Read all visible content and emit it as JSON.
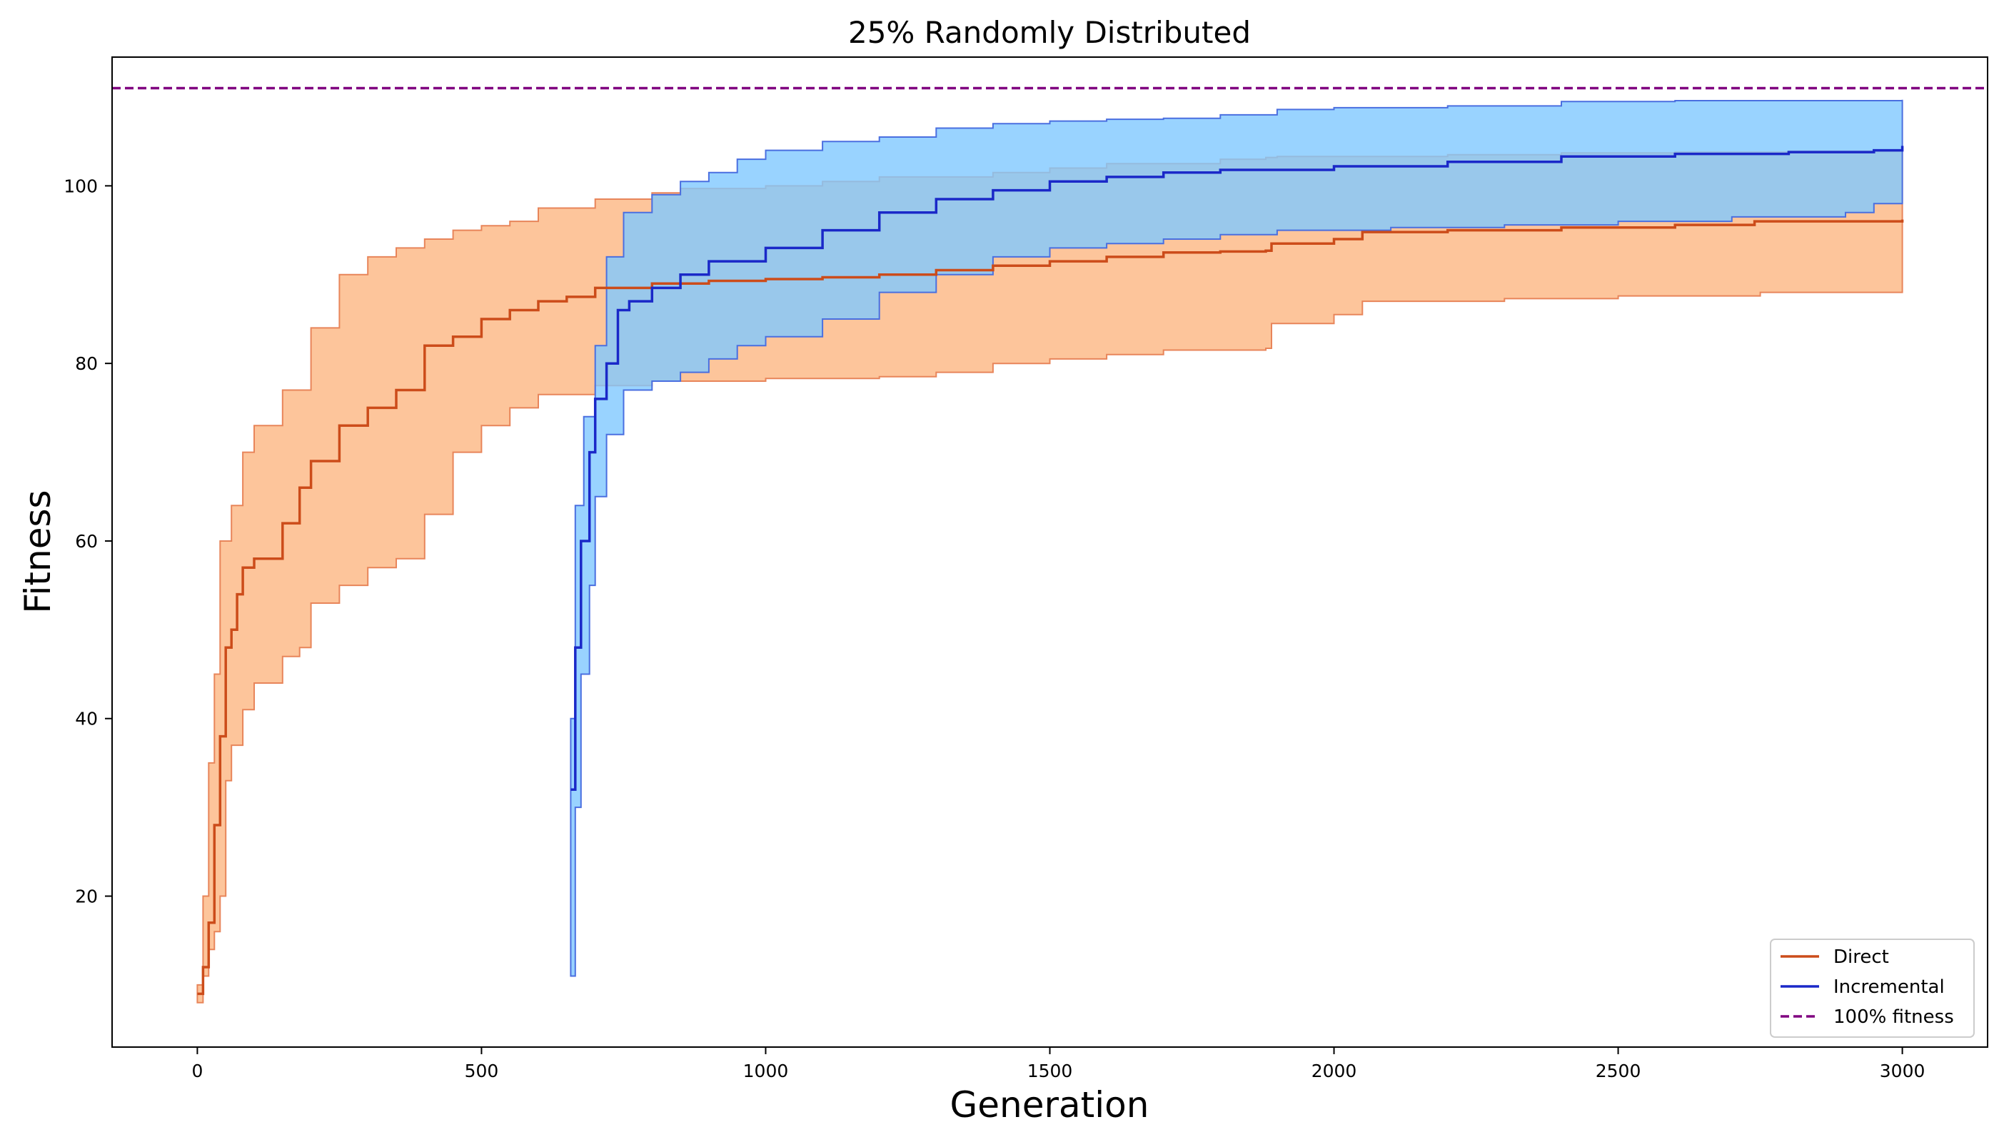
{
  "chart_data": {
    "type": "line",
    "title": "25% Randomly Distributed",
    "xlabel": "Generation",
    "ylabel": "Fitness",
    "xlim": [
      -150,
      3150
    ],
    "ylim": [
      3,
      114.5
    ],
    "xticks": [
      0,
      500,
      1000,
      1500,
      2000,
      2500,
      3000
    ],
    "yticks": [
      20,
      40,
      60,
      80,
      100
    ],
    "grid": false,
    "legend_position": "lower-right",
    "reference_line": {
      "name": "100% fitness",
      "y": 111,
      "color": "#800080",
      "style": "dashed"
    },
    "series": [
      {
        "name": "Direct",
        "color": "#CC4C1A",
        "band_color": "#FDBB8A",
        "band_edge_color": "#E8855A",
        "mean": [
          [
            0,
            9
          ],
          [
            10,
            12
          ],
          [
            20,
            17
          ],
          [
            30,
            28
          ],
          [
            40,
            38
          ],
          [
            50,
            48
          ],
          [
            60,
            50
          ],
          [
            70,
            54
          ],
          [
            80,
            57
          ],
          [
            100,
            58
          ],
          [
            150,
            62
          ],
          [
            180,
            66
          ],
          [
            200,
            69
          ],
          [
            250,
            73
          ],
          [
            300,
            75
          ],
          [
            350,
            77
          ],
          [
            400,
            82
          ],
          [
            450,
            83
          ],
          [
            500,
            85
          ],
          [
            550,
            86
          ],
          [
            600,
            87
          ],
          [
            650,
            87.5
          ],
          [
            700,
            88.5
          ],
          [
            800,
            89
          ],
          [
            900,
            89.3
          ],
          [
            1000,
            89.5
          ],
          [
            1100,
            89.7
          ],
          [
            1200,
            90
          ],
          [
            1300,
            90.5
          ],
          [
            1400,
            91
          ],
          [
            1500,
            91.5
          ],
          [
            1600,
            92
          ],
          [
            1700,
            92.5
          ],
          [
            1800,
            92.6
          ],
          [
            1880,
            92.7
          ],
          [
            1890,
            93.5
          ],
          [
            2000,
            94
          ],
          [
            2050,
            94.8
          ],
          [
            2200,
            95
          ],
          [
            2400,
            95.3
          ],
          [
            2600,
            95.6
          ],
          [
            2740,
            96
          ],
          [
            3000,
            96.2
          ]
        ],
        "upper": [
          [
            0,
            10
          ],
          [
            10,
            20
          ],
          [
            20,
            35
          ],
          [
            30,
            45
          ],
          [
            40,
            60
          ],
          [
            60,
            64
          ],
          [
            80,
            70
          ],
          [
            100,
            73
          ],
          [
            150,
            77
          ],
          [
            200,
            84
          ],
          [
            250,
            90
          ],
          [
            300,
            92
          ],
          [
            350,
            93
          ],
          [
            400,
            94
          ],
          [
            450,
            95
          ],
          [
            500,
            95.5
          ],
          [
            550,
            96
          ],
          [
            600,
            97.5
          ],
          [
            700,
            98.5
          ],
          [
            800,
            99.2
          ],
          [
            850,
            99.7
          ],
          [
            1000,
            100
          ],
          [
            1100,
            100.5
          ],
          [
            1200,
            101
          ],
          [
            1400,
            101.5
          ],
          [
            1500,
            102
          ],
          [
            1600,
            102.5
          ],
          [
            1800,
            103
          ],
          [
            1880,
            103.2
          ],
          [
            1900,
            103.3
          ],
          [
            2200,
            103.5
          ],
          [
            2400,
            103.7
          ],
          [
            2600,
            103.8
          ],
          [
            2800,
            103.9
          ],
          [
            3000,
            104.2
          ]
        ],
        "lower": [
          [
            0,
            8
          ],
          [
            10,
            11
          ],
          [
            20,
            14
          ],
          [
            30,
            16
          ],
          [
            40,
            20
          ],
          [
            50,
            33
          ],
          [
            60,
            37
          ],
          [
            80,
            41
          ],
          [
            100,
            44
          ],
          [
            150,
            47
          ],
          [
            180,
            48
          ],
          [
            200,
            53
          ],
          [
            250,
            55
          ],
          [
            300,
            57
          ],
          [
            350,
            58
          ],
          [
            400,
            63
          ],
          [
            450,
            70
          ],
          [
            500,
            73
          ],
          [
            550,
            75
          ],
          [
            600,
            76.5
          ],
          [
            700,
            77.5
          ],
          [
            800,
            78
          ],
          [
            1000,
            78.3
          ],
          [
            1200,
            78.5
          ],
          [
            1300,
            79
          ],
          [
            1400,
            80
          ],
          [
            1500,
            80.5
          ],
          [
            1600,
            81
          ],
          [
            1700,
            81.5
          ],
          [
            1880,
            81.7
          ],
          [
            1890,
            84.5
          ],
          [
            2000,
            85.5
          ],
          [
            2050,
            87
          ],
          [
            2300,
            87.3
          ],
          [
            2500,
            87.6
          ],
          [
            2750,
            88
          ],
          [
            3000,
            88
          ]
        ]
      },
      {
        "name": "Incremental",
        "color": "#1A28C8",
        "band_color": "#7FC8FF",
        "band_edge_color": "#4A6FE0",
        "mean": [
          [
            657,
            32
          ],
          [
            665,
            48
          ],
          [
            675,
            60
          ],
          [
            690,
            70
          ],
          [
            700,
            76
          ],
          [
            720,
            80
          ],
          [
            740,
            86
          ],
          [
            760,
            87
          ],
          [
            800,
            88.5
          ],
          [
            850,
            90
          ],
          [
            900,
            91.5
          ],
          [
            1000,
            93
          ],
          [
            1100,
            95
          ],
          [
            1200,
            97
          ],
          [
            1300,
            98.5
          ],
          [
            1400,
            99.5
          ],
          [
            1500,
            100.5
          ],
          [
            1600,
            101
          ],
          [
            1700,
            101.5
          ],
          [
            1800,
            101.8
          ],
          [
            2000,
            102.2
          ],
          [
            2200,
            102.7
          ],
          [
            2400,
            103.3
          ],
          [
            2600,
            103.6
          ],
          [
            2800,
            103.8
          ],
          [
            2950,
            104
          ],
          [
            3000,
            104.5
          ]
        ],
        "upper": [
          [
            657,
            40
          ],
          [
            665,
            64
          ],
          [
            680,
            74
          ],
          [
            700,
            82
          ],
          [
            720,
            92
          ],
          [
            750,
            97
          ],
          [
            800,
            99
          ],
          [
            850,
            100.5
          ],
          [
            900,
            101.5
          ],
          [
            950,
            103
          ],
          [
            1000,
            104
          ],
          [
            1100,
            105
          ],
          [
            1200,
            105.5
          ],
          [
            1300,
            106.5
          ],
          [
            1400,
            107
          ],
          [
            1500,
            107.3
          ],
          [
            1600,
            107.5
          ],
          [
            1700,
            107.6
          ],
          [
            1800,
            108
          ],
          [
            1900,
            108.6
          ],
          [
            2000,
            108.8
          ],
          [
            2200,
            109
          ],
          [
            2400,
            109.5
          ],
          [
            2600,
            109.6
          ],
          [
            2800,
            109.6
          ],
          [
            3000,
            109.7
          ]
        ],
        "lower": [
          [
            657,
            11
          ],
          [
            665,
            30
          ],
          [
            675,
            45
          ],
          [
            690,
            55
          ],
          [
            700,
            65
          ],
          [
            720,
            72
          ],
          [
            750,
            77
          ],
          [
            800,
            78
          ],
          [
            850,
            79
          ],
          [
            900,
            80.5
          ],
          [
            950,
            82
          ],
          [
            1000,
            83
          ],
          [
            1100,
            85
          ],
          [
            1200,
            88
          ],
          [
            1300,
            90
          ],
          [
            1400,
            92
          ],
          [
            1500,
            93
          ],
          [
            1600,
            93.5
          ],
          [
            1700,
            94
          ],
          [
            1800,
            94.5
          ],
          [
            1900,
            95
          ],
          [
            2100,
            95.3
          ],
          [
            2300,
            95.6
          ],
          [
            2500,
            96
          ],
          [
            2700,
            96.5
          ],
          [
            2900,
            97
          ],
          [
            2950,
            98
          ],
          [
            3000,
            100
          ]
        ]
      }
    ]
  }
}
